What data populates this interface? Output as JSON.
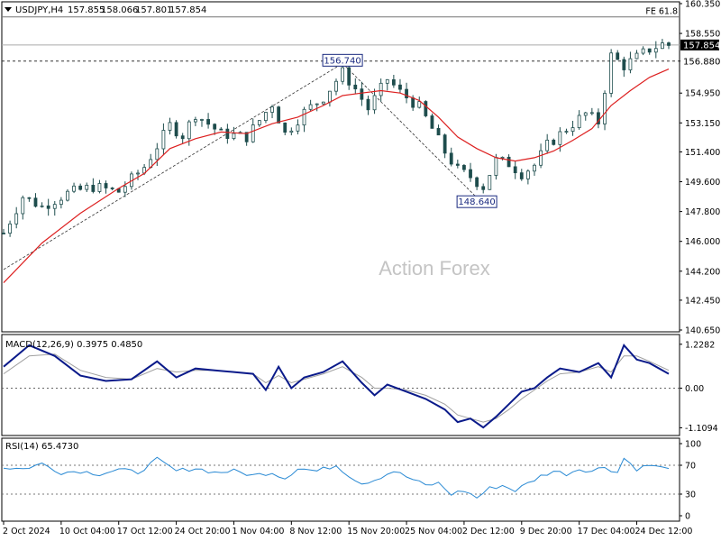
{
  "header": {
    "symbol": "USDJPY,H4",
    "open": "157.855",
    "high": "158.066",
    "low": "157.801",
    "close": "157.854"
  },
  "watermark": "Action Forex",
  "colors": {
    "candle": "#1e4d4d",
    "ma": "#dd2020",
    "macd_line": "#0a1a8a",
    "macd_signal": "#a0a0a0",
    "rsi": "#2a8ad4",
    "price_tag_bg": "#000000",
    "swing_label_border": "#1a2a80",
    "fib_line": "#888888"
  },
  "chart_data": [
    {
      "type": "candlestick",
      "panel": "price",
      "ylim": [
        140.65,
        160.35
      ],
      "y_ticks": [
        "160.350",
        "158.550",
        "156.880",
        "154.950",
        "153.150",
        "151.400",
        "149.600",
        "147.800",
        "146.000",
        "144.200",
        "142.450",
        "140.650"
      ],
      "current_price": "157.854",
      "horizontal_levels": [
        {
          "label": "156.880",
          "value": 156.88,
          "style": "dashed"
        },
        {
          "label": "FE 61.8",
          "value": 159.55,
          "style": "solid"
        }
      ],
      "swing_labels": [
        {
          "text": "156.740",
          "value": 156.74,
          "bar": 53
        },
        {
          "text": "148.640",
          "value": 148.64,
          "bar": 74
        }
      ],
      "swing_path": [
        [
          0,
          144.3
        ],
        [
          53,
          156.74
        ],
        [
          74,
          148.64
        ]
      ],
      "indicator": "moving average (red)",
      "close_path": [
        [
          0,
          146.5
        ],
        [
          3,
          148.7
        ],
        [
          6,
          148.1
        ],
        [
          10,
          148.9
        ],
        [
          14,
          149.3
        ],
        [
          18,
          149.0
        ],
        [
          22,
          150.5
        ],
        [
          26,
          153.0
        ],
        [
          28,
          152.4
        ],
        [
          30,
          153.7
        ],
        [
          34,
          152.5
        ],
        [
          38,
          152.3
        ],
        [
          42,
          154.3
        ],
        [
          44,
          152.5
        ],
        [
          47,
          153.8
        ],
        [
          50,
          154.7
        ],
        [
          53,
          156.2
        ],
        [
          55,
          155.2
        ],
        [
          57,
          154.0
        ],
        [
          60,
          155.8
        ],
        [
          62,
          155.0
        ],
        [
          65,
          154.1
        ],
        [
          67,
          152.8
        ],
        [
          69,
          151.4
        ],
        [
          71,
          150.3
        ],
        [
          73,
          149.9
        ],
        [
          75,
          149.3
        ],
        [
          77,
          150.9
        ],
        [
          79,
          150.7
        ],
        [
          81,
          150.1
        ],
        [
          83,
          150.6
        ],
        [
          85,
          151.8
        ],
        [
          88,
          152.8
        ],
        [
          91,
          153.7
        ],
        [
          93,
          153.2
        ],
        [
          95,
          157.2
        ],
        [
          97,
          156.6
        ],
        [
          99,
          157.1
        ],
        [
          101,
          157.6
        ],
        [
          103,
          157.9
        ],
        [
          104,
          157.85
        ]
      ],
      "ma_path": [
        [
          0,
          143.5
        ],
        [
          6,
          145.9
        ],
        [
          12,
          147.7
        ],
        [
          18,
          149.2
        ],
        [
          22,
          150.1
        ],
        [
          26,
          151.6
        ],
        [
          30,
          152.2
        ],
        [
          34,
          152.6
        ],
        [
          38,
          152.5
        ],
        [
          42,
          153.1
        ],
        [
          46,
          153.5
        ],
        [
          50,
          154.2
        ],
        [
          53,
          154.8
        ],
        [
          56,
          154.95
        ],
        [
          59,
          155.1
        ],
        [
          62,
          154.95
        ],
        [
          65,
          154.5
        ],
        [
          68,
          153.5
        ],
        [
          71,
          152.3
        ],
        [
          74,
          151.6
        ],
        [
          77,
          151.05
        ],
        [
          80,
          150.85
        ],
        [
          83,
          151.05
        ],
        [
          86,
          151.45
        ],
        [
          89,
          152.1
        ],
        [
          92,
          152.8
        ],
        [
          95,
          154.2
        ],
        [
          98,
          155.1
        ],
        [
          101,
          155.9
        ],
        [
          104,
          156.4
        ]
      ]
    },
    {
      "type": "line",
      "panel": "MACD",
      "title": "MACD(12,26,9)",
      "macd_value": "0.3975",
      "signal_value": "0.4850",
      "ylim": [
        -1.25,
        1.4
      ],
      "y_ticks": [
        "1.2282",
        "0.00",
        "-1.1094"
      ],
      "series": [
        {
          "name": "MACD",
          "points": [
            [
              0,
              0.6
            ],
            [
              4,
              1.2
            ],
            [
              8,
              0.9
            ],
            [
              12,
              0.35
            ],
            [
              16,
              0.2
            ],
            [
              20,
              0.25
            ],
            [
              24,
              0.75
            ],
            [
              27,
              0.3
            ],
            [
              30,
              0.55
            ],
            [
              33,
              0.5
            ],
            [
              36,
              0.45
            ],
            [
              39,
              0.4
            ],
            [
              41,
              -0.05
            ],
            [
              43,
              0.6
            ],
            [
              45,
              0.0
            ],
            [
              47,
              0.3
            ],
            [
              50,
              0.45
            ],
            [
              53,
              0.75
            ],
            [
              56,
              0.15
            ],
            [
              58,
              -0.2
            ],
            [
              60,
              0.1
            ],
            [
              63,
              -0.1
            ],
            [
              66,
              -0.3
            ],
            [
              69,
              -0.6
            ],
            [
              71,
              -0.95
            ],
            [
              73,
              -0.85
            ],
            [
              75,
              -1.1
            ],
            [
              77,
              -0.8
            ],
            [
              79,
              -0.45
            ],
            [
              81,
              -0.1
            ],
            [
              83,
              0.0
            ],
            [
              85,
              0.3
            ],
            [
              87,
              0.55
            ],
            [
              90,
              0.45
            ],
            [
              93,
              0.7
            ],
            [
              95,
              0.3
            ],
            [
              97,
              1.2
            ],
            [
              99,
              0.8
            ],
            [
              101,
              0.7
            ],
            [
              104,
              0.4
            ]
          ]
        },
        {
          "name": "Signal",
          "points": [
            [
              0,
              0.4
            ],
            [
              4,
              0.9
            ],
            [
              8,
              0.95
            ],
            [
              12,
              0.5
            ],
            [
              16,
              0.3
            ],
            [
              20,
              0.25
            ],
            [
              24,
              0.55
            ],
            [
              27,
              0.45
            ],
            [
              30,
              0.5
            ],
            [
              33,
              0.5
            ],
            [
              36,
              0.45
            ],
            [
              39,
              0.4
            ],
            [
              41,
              0.15
            ],
            [
              43,
              0.35
            ],
            [
              45,
              0.15
            ],
            [
              47,
              0.25
            ],
            [
              50,
              0.4
            ],
            [
              53,
              0.6
            ],
            [
              56,
              0.3
            ],
            [
              58,
              0.0
            ],
            [
              60,
              0.0
            ],
            [
              63,
              -0.05
            ],
            [
              66,
              -0.2
            ],
            [
              69,
              -0.45
            ],
            [
              71,
              -0.75
            ],
            [
              73,
              -0.85
            ],
            [
              75,
              -0.95
            ],
            [
              77,
              -0.85
            ],
            [
              79,
              -0.6
            ],
            [
              81,
              -0.3
            ],
            [
              83,
              -0.05
            ],
            [
              85,
              0.2
            ],
            [
              87,
              0.4
            ],
            [
              90,
              0.45
            ],
            [
              93,
              0.6
            ],
            [
              95,
              0.45
            ],
            [
              97,
              0.9
            ],
            [
              99,
              0.9
            ],
            [
              101,
              0.75
            ],
            [
              104,
              0.5
            ]
          ]
        }
      ]
    },
    {
      "type": "line",
      "panel": "RSI",
      "title": "RSI(14)",
      "value": "65.4730",
      "ylim": [
        0,
        100
      ],
      "y_ticks": [
        "100",
        "70",
        "30",
        "0"
      ],
      "levels": [
        70,
        30
      ],
      "series": [
        {
          "name": "RSI",
          "points": [
            [
              0,
              67
            ],
            [
              3,
              65
            ],
            [
              6,
              72
            ],
            [
              9,
              60
            ],
            [
              12,
              62
            ],
            [
              15,
              58
            ],
            [
              18,
              64
            ],
            [
              21,
              60
            ],
            [
              24,
              78
            ],
            [
              27,
              62
            ],
            [
              30,
              66
            ],
            [
              33,
              60
            ],
            [
              36,
              62
            ],
            [
              39,
              56
            ],
            [
              42,
              60
            ],
            [
              44,
              52
            ],
            [
              46,
              66
            ],
            [
              49,
              62
            ],
            [
              52,
              70
            ],
            [
              54,
              56
            ],
            [
              56,
              45
            ],
            [
              58,
              50
            ],
            [
              61,
              62
            ],
            [
              64,
              50
            ],
            [
              66,
              42
            ],
            [
              68,
              45
            ],
            [
              70,
              30
            ],
            [
              72,
              35
            ],
            [
              74,
              25
            ],
            [
              76,
              38
            ],
            [
              78,
              42
            ],
            [
              80,
              35
            ],
            [
              82,
              45
            ],
            [
              84,
              55
            ],
            [
              86,
              62
            ],
            [
              88,
              58
            ],
            [
              90,
              65
            ],
            [
              92,
              62
            ],
            [
              94,
              68
            ],
            [
              96,
              60
            ],
            [
              97,
              80
            ],
            [
              99,
              65
            ],
            [
              101,
              70
            ],
            [
              103,
              66
            ],
            [
              104,
              65
            ]
          ]
        }
      ]
    }
  ],
  "x_axis": {
    "labels": [
      "2 Oct 2024",
      "10 Oct 04:00",
      "17 Oct 12:00",
      "24 Oct 20:00",
      "1 Nov 04:00",
      "8 Nov 12:00",
      "15 Nov 20:00",
      "25 Nov 04:00",
      "2 Dec 12:00",
      "9 Dec 20:00",
      "17 Dec 04:00",
      "24 Dec 12:00"
    ],
    "label_bars": [
      0,
      9,
      18,
      27,
      36,
      45,
      54,
      63,
      72,
      81,
      90,
      99
    ]
  }
}
